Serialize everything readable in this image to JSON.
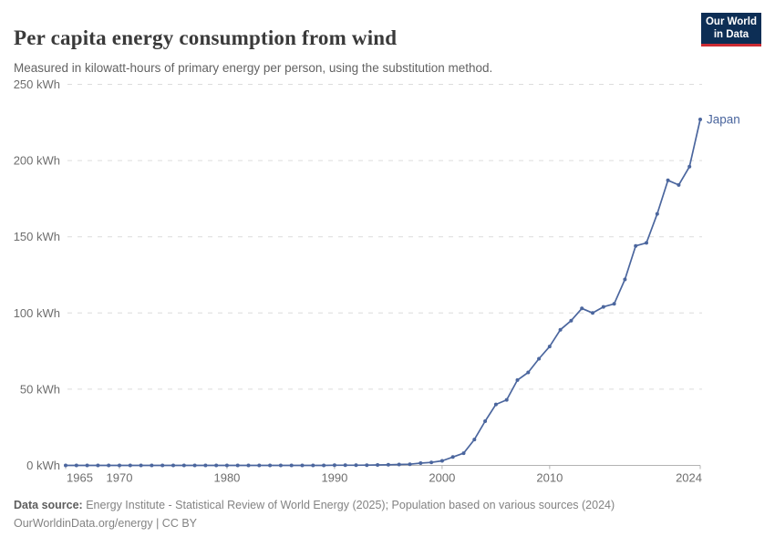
{
  "header": {
    "title": "Per capita energy consumption from wind",
    "subtitle": "Measured in kilowatt-hours of primary energy per person, using the substitution method.",
    "logo": {
      "line1": "Our World",
      "line2": "in Data"
    }
  },
  "chart_data": {
    "type": "line",
    "title": "Per capita energy consumption from wind",
    "x": [
      1965,
      1966,
      1967,
      1968,
      1969,
      1970,
      1971,
      1972,
      1973,
      1974,
      1975,
      1976,
      1977,
      1978,
      1979,
      1980,
      1981,
      1982,
      1983,
      1984,
      1985,
      1986,
      1987,
      1988,
      1989,
      1990,
      1991,
      1992,
      1993,
      1994,
      1995,
      1996,
      1997,
      1998,
      1999,
      2000,
      2001,
      2002,
      2003,
      2004,
      2005,
      2006,
      2007,
      2008,
      2009,
      2010,
      2011,
      2012,
      2013,
      2014,
      2015,
      2016,
      2017,
      2018,
      2019,
      2020,
      2021,
      2022,
      2023,
      2024
    ],
    "series": [
      {
        "name": "Japan",
        "color": "#4b669e",
        "values": [
          0,
          0,
          0,
          0,
          0,
          0,
          0,
          0,
          0,
          0,
          0,
          0,
          0,
          0,
          0,
          0,
          0,
          0,
          0,
          0,
          0,
          0,
          0,
          0,
          0,
          0.1,
          0.1,
          0.1,
          0.2,
          0.3,
          0.4,
          0.6,
          0.8,
          1.5,
          2,
          3,
          5.5,
          8,
          17,
          29,
          40,
          43,
          56,
          61,
          70,
          78,
          89,
          95,
          103,
          100,
          104,
          106,
          122,
          144,
          146,
          165,
          187,
          184,
          196,
          227
        ]
      }
    ],
    "xlim": [
      1965,
      2024
    ],
    "ylim": [
      0,
      250
    ],
    "xlabel": "",
    "ylabel": "",
    "grid": "horizontal-dashed",
    "legend_position": "end-of-line",
    "y_ticks": [
      {
        "value": 0,
        "label": "0 kWh"
      },
      {
        "value": 50,
        "label": "50 kWh"
      },
      {
        "value": 100,
        "label": "100 kWh"
      },
      {
        "value": 150,
        "label": "150 kWh"
      },
      {
        "value": 200,
        "label": "200 kWh"
      },
      {
        "value": 250,
        "label": "250 kWh"
      }
    ],
    "x_ticks": [
      {
        "value": 1965,
        "label": "1965"
      },
      {
        "value": 1970,
        "label": "1970"
      },
      {
        "value": 1980,
        "label": "1980"
      },
      {
        "value": 1990,
        "label": "1990"
      },
      {
        "value": 2000,
        "label": "2000"
      },
      {
        "value": 2010,
        "label": "2010"
      },
      {
        "value": 2024,
        "label": "2024"
      }
    ]
  },
  "footer": {
    "data_source_label": "Data source:",
    "data_source_text": " Energy Institute - Statistical Review of World Energy (2025); Population based on various sources (2024)",
    "link_line": "OurWorldinData.org/energy | CC BY"
  },
  "colors": {
    "line": "#4b669e",
    "gridline": "#dcdcdc",
    "axis": "#b3b3b3",
    "tick_label": "#6e6e6e",
    "logo_bg": "#0d2e55",
    "logo_stripe": "#cc2b33"
  }
}
